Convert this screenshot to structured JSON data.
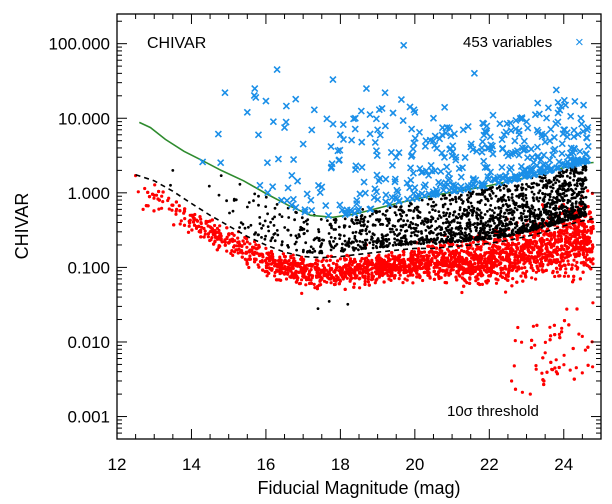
{
  "chart_data": {
    "type": "scatter",
    "title": "",
    "xlabel": "Fiducial Magnitude (mag)",
    "ylabel": "CHIVAR",
    "xlim": [
      12,
      25
    ],
    "ylim": [
      0.0005,
      250
    ],
    "yscale": "log",
    "grid": false,
    "xticks": [
      12,
      14,
      16,
      18,
      20,
      22,
      24
    ],
    "xtick_labels": [
      "12",
      "14",
      "16",
      "18",
      "20",
      "22",
      "24"
    ],
    "yticks": [
      0.001,
      0.01,
      0.1,
      1,
      10,
      100
    ],
    "ytick_labels": [
      "0.001",
      "0.010",
      "0.100",
      "1.000",
      "10.000",
      "100.000"
    ],
    "annotations": {
      "panel_label": "CHIVAR",
      "variables_label": "453 variables",
      "threshold_label": "10σ threshold"
    },
    "variables_marker": "×",
    "series": [
      {
        "name": "453 variables",
        "kind": "scatter-cross",
        "color": "#1a8fe8",
        "count": 453,
        "sample_points": [
          [
            14.3,
            2.6
          ],
          [
            14.9,
            22
          ],
          [
            15.5,
            12
          ],
          [
            15.7,
            25
          ],
          [
            15.8,
            6
          ],
          [
            16.0,
            17
          ],
          [
            16.2,
            9
          ],
          [
            16.3,
            45
          ],
          [
            16.5,
            7.5
          ],
          [
            16.8,
            18
          ],
          [
            17.0,
            4.5
          ],
          [
            17.3,
            13
          ],
          [
            17.5,
            1.2
          ],
          [
            17.8,
            33
          ],
          [
            18.0,
            6
          ],
          [
            18.4,
            10
          ],
          [
            18.7,
            25
          ],
          [
            19.0,
            7
          ],
          [
            19.2,
            22
          ],
          [
            19.5,
            3
          ],
          [
            19.7,
            95
          ],
          [
            20.0,
            12
          ],
          [
            20.3,
            5
          ],
          [
            20.5,
            10
          ],
          [
            20.8,
            14
          ],
          [
            21.1,
            3
          ],
          [
            21.3,
            7
          ],
          [
            21.6,
            40
          ],
          [
            21.8,
            4
          ],
          [
            22.1,
            11
          ],
          [
            22.4,
            6
          ],
          [
            22.7,
            3.5
          ],
          [
            23.0,
            9
          ],
          [
            23.3,
            16
          ],
          [
            23.5,
            6
          ],
          [
            23.8,
            24
          ],
          [
            24.0,
            7
          ],
          [
            24.2,
            4
          ]
        ]
      },
      {
        "name": "",
        "kind": "scatter-dot",
        "color": "#000000",
        "sample_points": [
          [
            13.5,
            2.0
          ],
          [
            14.8,
            1.7
          ],
          [
            15.3,
            1.3
          ],
          [
            15.8,
            0.9
          ],
          [
            16.3,
            0.7
          ],
          [
            16.8,
            0.55
          ],
          [
            17.3,
            0.5
          ],
          [
            17.4,
            0.028
          ],
          [
            17.7,
            0.035
          ],
          [
            18.2,
            0.032
          ],
          [
            18.6,
            0.6
          ],
          [
            19.5,
            0.65
          ],
          [
            20.5,
            0.75
          ],
          [
            21.5,
            0.9
          ],
          [
            22.5,
            1.1
          ],
          [
            23.0,
            1.3
          ],
          [
            23.5,
            1.6
          ],
          [
            24.0,
            1.9
          ],
          [
            24.3,
            2.0
          ]
        ]
      },
      {
        "name": "",
        "kind": "scatter-dot",
        "color": "#ff0000",
        "description_points": [
          [
            12.5,
            1.7
          ],
          [
            12.7,
            0.6
          ],
          [
            13.2,
            0.9
          ],
          [
            13.6,
            0.6
          ],
          [
            14.0,
            0.5
          ],
          [
            14.5,
            0.35
          ],
          [
            15.0,
            0.28
          ],
          [
            15.5,
            0.22
          ],
          [
            16.0,
            0.18
          ],
          [
            16.5,
            0.14
          ],
          [
            17.0,
            0.12
          ],
          [
            17.5,
            0.12
          ],
          [
            18.0,
            0.13
          ],
          [
            19.0,
            0.14
          ],
          [
            20.0,
            0.15
          ],
          [
            21.0,
            0.16
          ],
          [
            22.0,
            0.18
          ],
          [
            23.0,
            0.22
          ],
          [
            23.5,
            0.3
          ],
          [
            24.0,
            0.4
          ],
          [
            24.5,
            0.5
          ],
          [
            22.6,
            0.003
          ],
          [
            23.1,
            0.002
          ],
          [
            23.8,
            0.004
          ]
        ]
      },
      {
        "name": "",
        "kind": "line",
        "style": "solid",
        "color": "#2e8b2e",
        "x": [
          12.6,
          12.9,
          13.3,
          13.8,
          14.3,
          14.8,
          15.4,
          16.0,
          16.6,
          17.2,
          17.8,
          18.4,
          19.0,
          19.6,
          20.2,
          20.8,
          21.4,
          22.0,
          22.6,
          23.2,
          23.8,
          24.4,
          24.8
        ],
        "y": [
          8.8,
          7.5,
          5.2,
          3.6,
          2.7,
          2.0,
          1.45,
          0.98,
          0.68,
          0.5,
          0.47,
          0.52,
          0.62,
          0.74,
          0.86,
          0.98,
          1.1,
          1.25,
          1.45,
          1.7,
          2.05,
          2.45,
          2.55
        ]
      },
      {
        "name": "",
        "kind": "line",
        "style": "dashed",
        "color": "#000000",
        "x": [
          12.5,
          13.0,
          13.5,
          14.0,
          14.5,
          15.0,
          15.5,
          16.0,
          16.5,
          17.0,
          17.5,
          18.0,
          18.5,
          19.0,
          19.5,
          20.0,
          20.5,
          21.0,
          21.5,
          22.0,
          22.5,
          23.0,
          23.5,
          24.0,
          24.5,
          24.8
        ],
        "y": [
          1.75,
          1.45,
          1.05,
          0.72,
          0.5,
          0.36,
          0.26,
          0.2,
          0.16,
          0.14,
          0.135,
          0.14,
          0.15,
          0.16,
          0.17,
          0.18,
          0.18,
          0.19,
          0.2,
          0.21,
          0.23,
          0.26,
          0.3,
          0.36,
          0.42,
          0.45
        ]
      }
    ]
  }
}
